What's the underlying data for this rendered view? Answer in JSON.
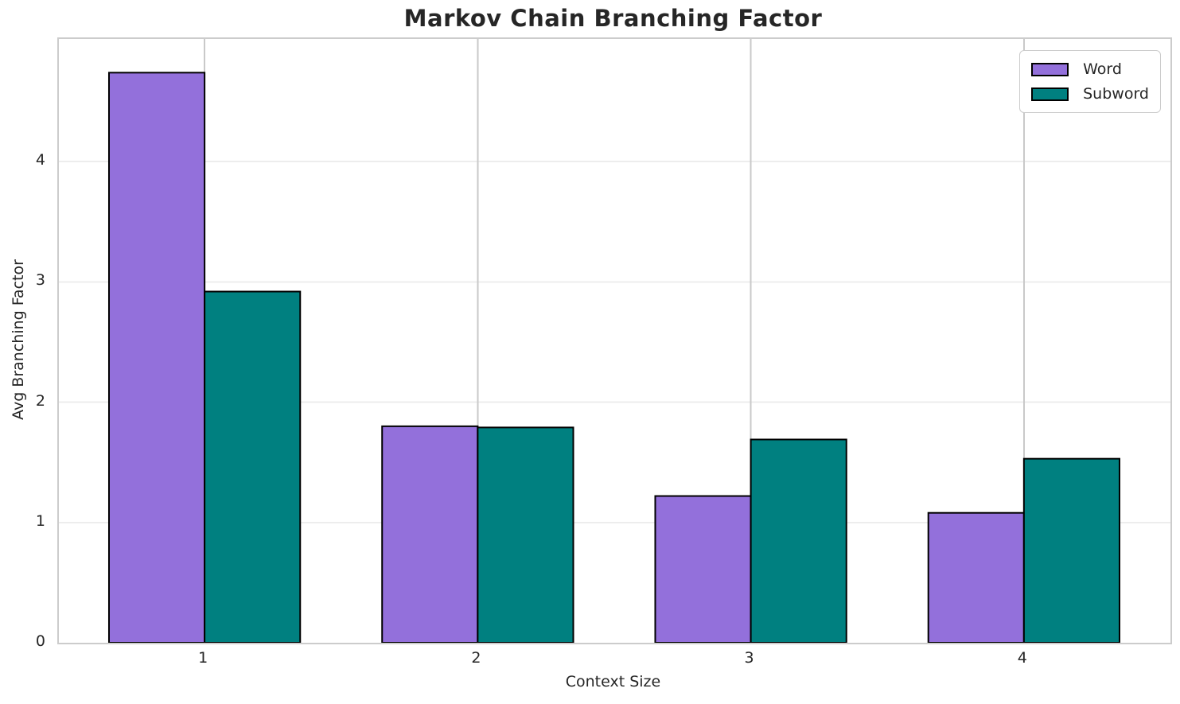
{
  "chart_data": {
    "type": "bar",
    "title": "Markov Chain Branching Factor",
    "xlabel": "Context Size",
    "ylabel": "Avg Branching Factor",
    "categories": [
      "1",
      "2",
      "3",
      "4"
    ],
    "series": [
      {
        "name": "Word",
        "color": "#9370DB",
        "edge_color": "#000000",
        "values": [
          4.74,
          1.8,
          1.22,
          1.08
        ]
      },
      {
        "name": "Subword",
        "color": "#008080",
        "edge_color": "#000000",
        "values": [
          2.92,
          1.79,
          1.69,
          1.53
        ]
      }
    ],
    "ylim": [
      0,
      5.02
    ],
    "yticks": [
      0,
      1,
      2,
      3,
      4
    ],
    "xlim": [
      0.4665,
      4.5365
    ],
    "bar_width": 0.35,
    "grid": true,
    "legend": {
      "position": "upper right",
      "entries": [
        "Word",
        "Subword"
      ]
    }
  }
}
